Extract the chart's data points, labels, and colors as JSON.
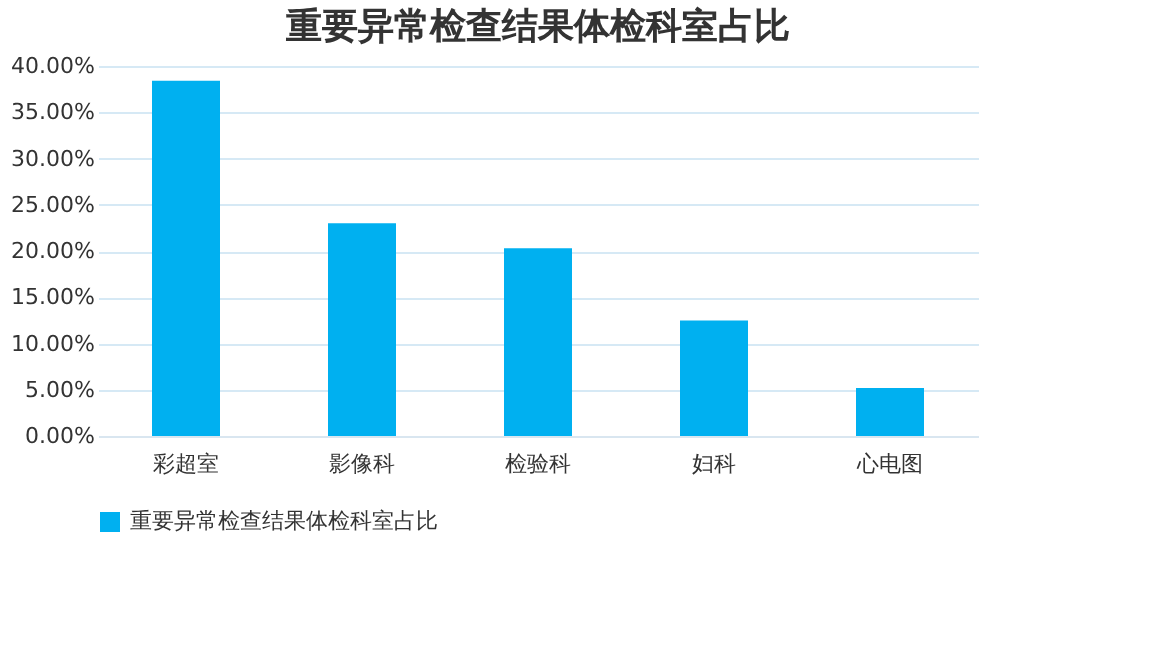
{
  "chart_data": {
    "type": "bar",
    "title": "重要异常检查结果体检科室占比",
    "categories": [
      "彩超室",
      "影像科",
      "检验科",
      "妇科",
      "心电图"
    ],
    "series": [
      {
        "name": "重要异常检查结果体检科室占比",
        "color": "#00b0f0",
        "values": [
          38.4,
          23.0,
          20.3,
          12.5,
          5.2
        ]
      }
    ],
    "ylim": [
      0,
      40
    ],
    "yticks": [
      {
        "value": 0,
        "label": "0.00%"
      },
      {
        "value": 5,
        "label": "5.00%"
      },
      {
        "value": 10,
        "label": "10.00%"
      },
      {
        "value": 15,
        "label": "15.00%"
      },
      {
        "value": 20,
        "label": "20.00%"
      },
      {
        "value": 25,
        "label": "25.00%"
      },
      {
        "value": 30,
        "label": "30.00%"
      },
      {
        "value": 35,
        "label": "35.00%"
      },
      {
        "value": 40,
        "label": "40.00%"
      }
    ],
    "grid": "y",
    "legend": "bottom"
  }
}
